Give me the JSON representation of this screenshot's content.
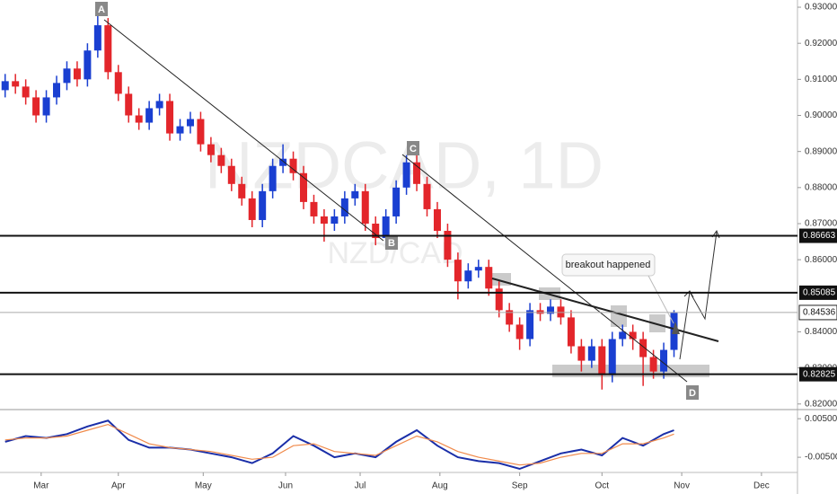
{
  "chart_data": [
    {
      "type": "candlestick",
      "title": "NZDCAD, 1D",
      "subtitle": "NZD/CAD",
      "up_color": "#1a3fd1",
      "down_color": "#e3262b",
      "x": [
        2,
        6,
        10,
        14,
        18,
        22,
        26,
        30,
        34,
        38,
        42,
        46,
        50,
        54,
        58,
        62,
        66,
        70,
        74,
        78,
        82,
        86,
        90,
        94,
        98,
        102,
        106,
        110,
        114,
        118,
        122,
        126,
        130,
        134,
        138,
        142,
        146,
        150,
        154,
        158,
        162,
        166,
        170,
        174,
        178,
        182,
        186,
        190,
        194,
        198,
        202,
        206,
        210,
        214,
        218,
        222,
        226,
        230,
        234,
        238,
        242,
        246,
        250,
        254,
        258,
        262
      ],
      "open": [
        0.907,
        0.9095,
        0.908,
        0.905,
        0.9,
        0.905,
        0.909,
        0.913,
        0.91,
        0.918,
        0.925,
        0.912,
        0.906,
        0.9,
        0.898,
        0.902,
        0.904,
        0.895,
        0.897,
        0.899,
        0.892,
        0.889,
        0.886,
        0.881,
        0.877,
        0.871,
        0.879,
        0.886,
        0.888,
        0.884,
        0.876,
        0.872,
        0.87,
        0.872,
        0.877,
        0.879,
        0.87,
        0.866,
        0.872,
        0.88,
        0.887,
        0.881,
        0.874,
        0.868,
        0.86,
        0.854,
        0.857,
        0.858,
        0.852,
        0.846,
        0.842,
        0.838,
        0.846,
        0.845,
        0.847,
        0.844,
        0.836,
        0.832,
        0.836,
        0.828,
        0.838,
        0.84,
        0.838,
        0.833,
        0.829,
        0.835
      ],
      "high": [
        0.9115,
        0.9115,
        0.91,
        0.907,
        0.907,
        0.911,
        0.915,
        0.915,
        0.92,
        0.928,
        0.927,
        0.914,
        0.908,
        0.902,
        0.904,
        0.906,
        0.906,
        0.899,
        0.901,
        0.901,
        0.894,
        0.891,
        0.888,
        0.883,
        0.879,
        0.881,
        0.888,
        0.892,
        0.89,
        0.886,
        0.878,
        0.874,
        0.874,
        0.879,
        0.881,
        0.881,
        0.872,
        0.874,
        0.882,
        0.889,
        0.889,
        0.883,
        0.876,
        0.87,
        0.862,
        0.859,
        0.86,
        0.86,
        0.854,
        0.848,
        0.844,
        0.848,
        0.848,
        0.849,
        0.849,
        0.846,
        0.838,
        0.838,
        0.838,
        0.84,
        0.842,
        0.842,
        0.84,
        0.835,
        0.837,
        0.846
      ],
      "low": [
        0.905,
        0.906,
        0.903,
        0.898,
        0.898,
        0.903,
        0.907,
        0.908,
        0.908,
        0.916,
        0.91,
        0.904,
        0.898,
        0.896,
        0.896,
        0.9,
        0.893,
        0.893,
        0.895,
        0.89,
        0.887,
        0.884,
        0.879,
        0.875,
        0.869,
        0.869,
        0.877,
        0.884,
        0.882,
        0.874,
        0.87,
        0.865,
        0.868,
        0.87,
        0.875,
        0.868,
        0.864,
        0.864,
        0.87,
        0.878,
        0.879,
        0.872,
        0.866,
        0.858,
        0.849,
        0.852,
        0.855,
        0.85,
        0.844,
        0.84,
        0.835,
        0.836,
        0.843,
        0.843,
        0.842,
        0.834,
        0.829,
        0.83,
        0.824,
        0.826,
        0.836,
        0.835,
        0.825,
        0.827,
        0.827,
        0.833
      ],
      "close": [
        0.9095,
        0.908,
        0.905,
        0.9,
        0.905,
        0.909,
        0.913,
        0.91,
        0.918,
        0.925,
        0.912,
        0.906,
        0.9,
        0.898,
        0.902,
        0.904,
        0.895,
        0.897,
        0.899,
        0.892,
        0.889,
        0.886,
        0.881,
        0.877,
        0.871,
        0.879,
        0.886,
        0.888,
        0.884,
        0.876,
        0.872,
        0.87,
        0.872,
        0.877,
        0.879,
        0.87,
        0.866,
        0.872,
        0.88,
        0.887,
        0.881,
        0.874,
        0.868,
        0.86,
        0.854,
        0.857,
        0.858,
        0.852,
        0.846,
        0.842,
        0.838,
        0.846,
        0.845,
        0.847,
        0.844,
        0.836,
        0.832,
        0.836,
        0.828,
        0.838,
        0.84,
        0.838,
        0.833,
        0.829,
        0.835,
        0.8453
      ],
      "xlim": [
        0,
        310
      ],
      "xticks": [
        {
          "value": 16,
          "label": "Mar"
        },
        {
          "value": 46,
          "label": "Apr"
        },
        {
          "value": 79,
          "label": "May"
        },
        {
          "value": 111,
          "label": "Jun"
        },
        {
          "value": 140,
          "label": "Jul"
        },
        {
          "value": 171,
          "label": "Aug"
        },
        {
          "value": 202,
          "label": "Sep"
        },
        {
          "value": 234,
          "label": "Oct"
        },
        {
          "value": 265,
          "label": "Nov"
        },
        {
          "value": 296,
          "label": "Dec"
        }
      ],
      "ylim": [
        0.8187,
        0.932
      ],
      "yticks": [
        {
          "value": 0.93,
          "label": "0.93000"
        },
        {
          "value": 0.92,
          "label": "0.92000"
        },
        {
          "value": 0.91,
          "label": "0.91000"
        },
        {
          "value": 0.9,
          "label": "0.90000"
        },
        {
          "value": 0.89,
          "label": "0.89000"
        },
        {
          "value": 0.88,
          "label": "0.88000"
        },
        {
          "value": 0.87,
          "label": "0.87000"
        },
        {
          "value": 0.86,
          "label": "0.86000"
        },
        {
          "value": 0.84,
          "label": "0.84000"
        },
        {
          "value": 0.83,
          "label": "0.83000"
        },
        {
          "value": 0.82,
          "label": "0.82000"
        }
      ],
      "levels": [
        {
          "value": 0.86663,
          "label": "0.86663"
        },
        {
          "value": 0.85085,
          "label": "0.85085"
        },
        {
          "value": 0.82825,
          "label": "0.82825"
        }
      ],
      "last_price": {
        "value": 0.84536,
        "label": "0.84536"
      },
      "point_labels": [
        "A",
        "B",
        "C",
        "D"
      ],
      "annotation": "breakout happened"
    },
    {
      "type": "line",
      "x": [
        2,
        10,
        18,
        26,
        34,
        42,
        50,
        58,
        66,
        74,
        82,
        90,
        98,
        106,
        114,
        122,
        130,
        138,
        146,
        154,
        162,
        170,
        178,
        186,
        194,
        202,
        210,
        218,
        226,
        234,
        242,
        250,
        258,
        262
      ],
      "series": [
        {
          "color": "#1a2ea8",
          "values": [
            -0.001,
            0.0005,
            0,
            0.001,
            0.003,
            0.0045,
            -0.0005,
            -0.0025,
            -0.0025,
            -0.003,
            -0.004,
            -0.005,
            -0.0065,
            -0.004,
            0.0005,
            -0.002,
            -0.005,
            -0.004,
            -0.005,
            -0.001,
            0.002,
            -0.002,
            -0.005,
            -0.006,
            -0.0065,
            -0.008,
            -0.006,
            -0.004,
            -0.003,
            -0.0045,
            0,
            -0.002,
            0.001,
            0.002
          ]
        },
        {
          "color": "#f08a4b",
          "values": [
            -0.0005,
            0,
            0,
            0.0005,
            0.002,
            0.0035,
            0.001,
            -0.0015,
            -0.0025,
            -0.003,
            -0.0035,
            -0.0045,
            -0.0055,
            -0.005,
            -0.002,
            -0.0015,
            -0.0035,
            -0.004,
            -0.0045,
            -0.002,
            0.0005,
            -0.001,
            -0.0035,
            -0.005,
            -0.006,
            -0.007,
            -0.0065,
            -0.005,
            -0.004,
            -0.004,
            -0.0015,
            -0.0015,
            0,
            0.001
          ]
        }
      ],
      "ylim": [
        -0.0087,
        0.0069
      ],
      "yticks": [
        {
          "value": 0.005,
          "label": "0.00500"
        },
        {
          "value": -0.005,
          "label": "-0.00500"
        }
      ]
    }
  ]
}
